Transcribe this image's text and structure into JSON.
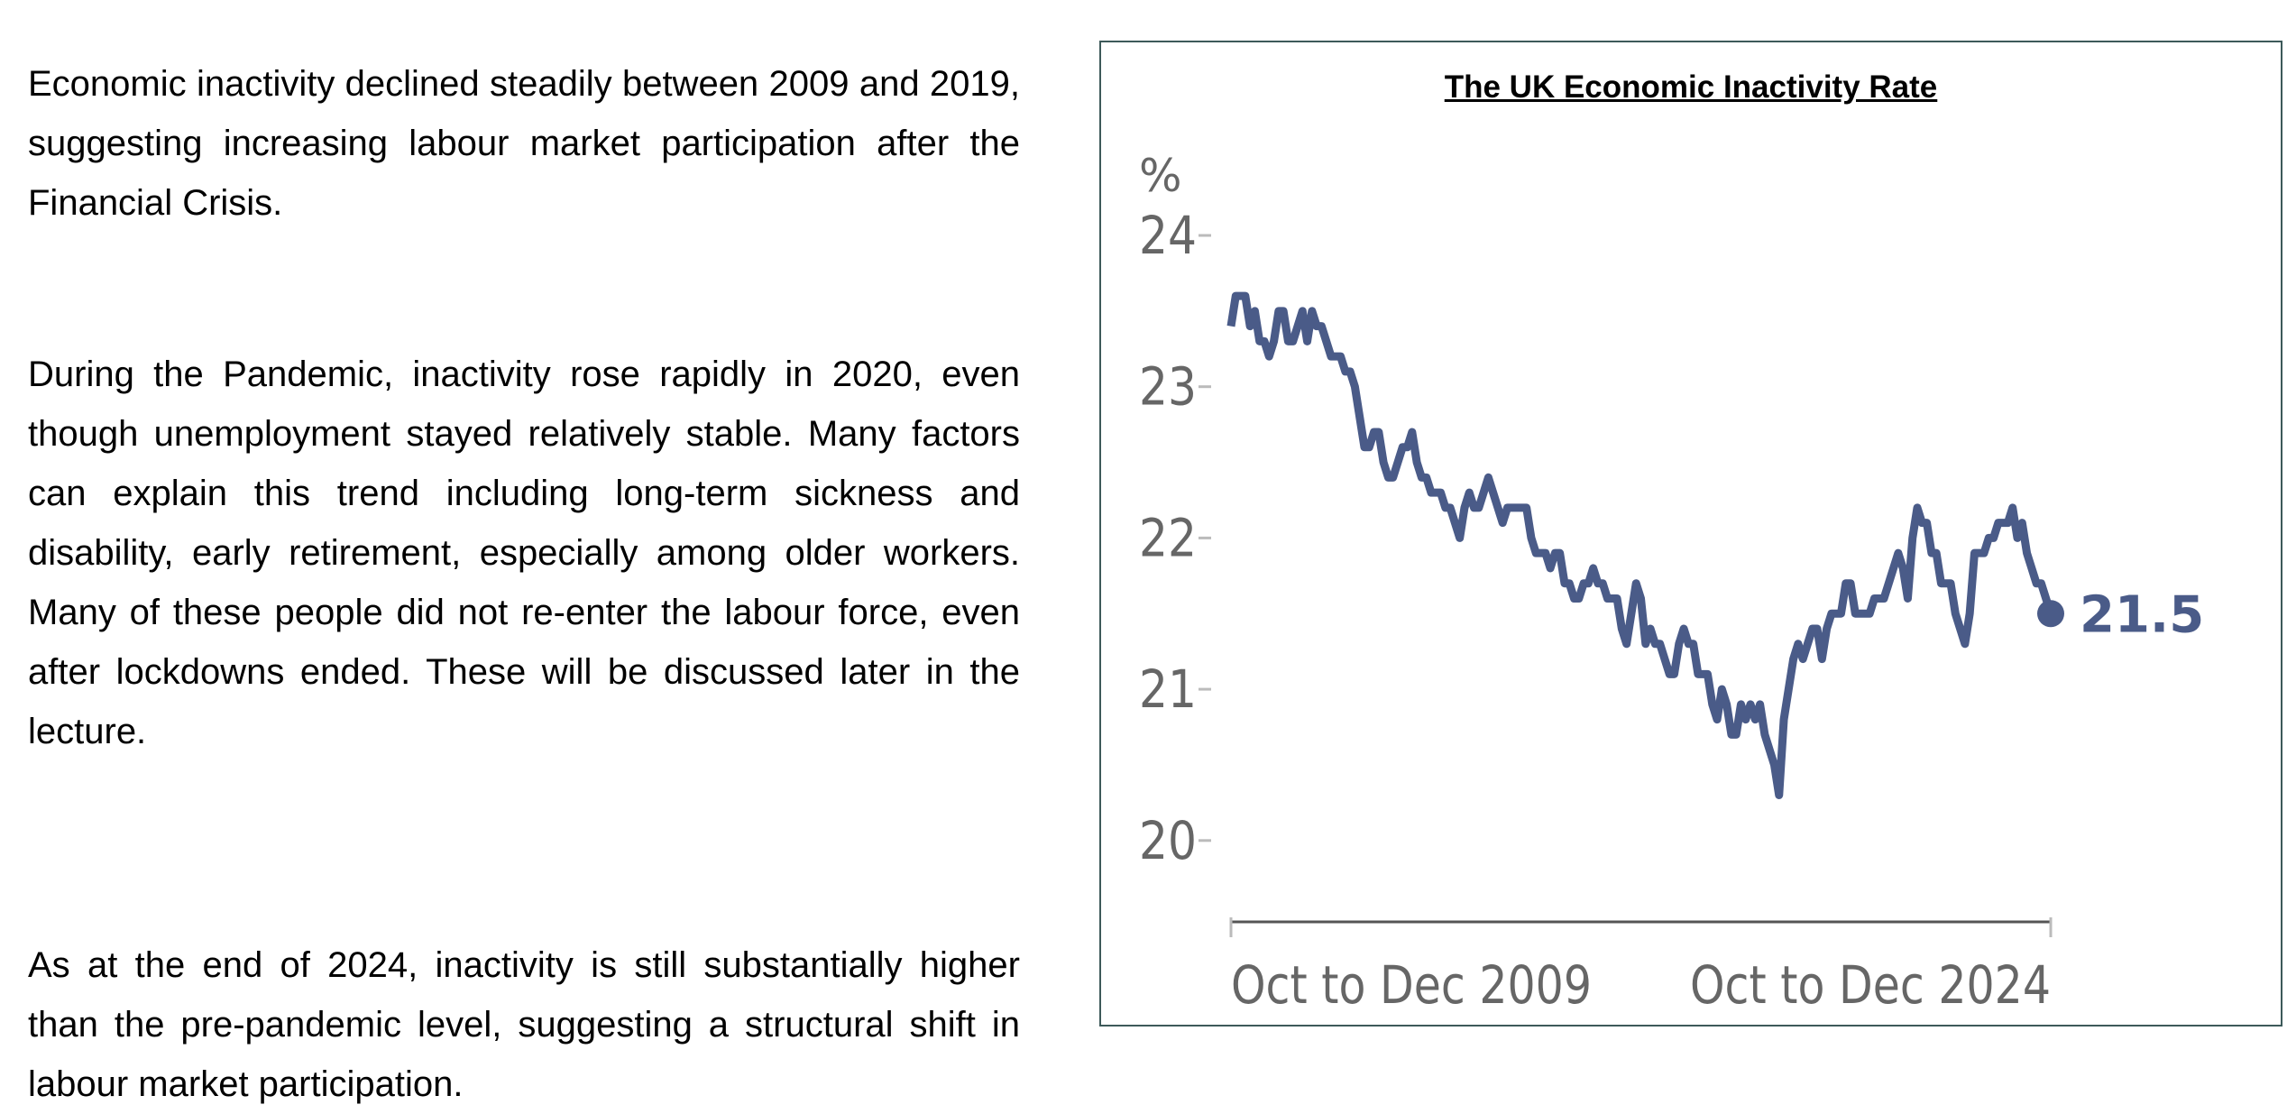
{
  "text": {
    "paragraph_1": "Economic inactivity declined steadily between 2009 and 2019, suggesting increasing labour market participation after the Financial Crisis.",
    "paragraph_2": "During the Pandemic, inactivity rose rapidly in 2020, even though unemployment stayed relatively stable. Many factors can explain this trend including long-term sickness and disability, early retirement, especially among older workers. Many of these people did not re-enter the labour force, even after lockdowns ended. These will be discussed later in the lecture.",
    "paragraph_3": "As at the end of 2024, inactivity is still substantially higher than the pre-pandemic level, suggesting a structural shift in labour market participation."
  },
  "chart_data": {
    "type": "line",
    "title": "The UK Economic Inactivity Rate",
    "ylabel": "%",
    "xlabel": "",
    "ylim": [
      19.5,
      24.2
    ],
    "yticks": [
      "20",
      "21",
      "22",
      "23",
      "24"
    ],
    "xtick_labels": [
      "Oct to Dec 2009",
      "Oct to Dec 2024"
    ],
    "grid": false,
    "end_label": "21.5",
    "line_color": "#4a5b88",
    "series": [
      {
        "name": "Economic inactivity rate",
        "values": [
          23.4,
          23.6,
          23.6,
          23.6,
          23.4,
          23.5,
          23.3,
          23.3,
          23.2,
          23.3,
          23.5,
          23.5,
          23.3,
          23.3,
          23.4,
          23.5,
          23.3,
          23.5,
          23.4,
          23.4,
          23.3,
          23.2,
          23.2,
          23.2,
          23.1,
          23.1,
          23.0,
          22.8,
          22.6,
          22.6,
          22.7,
          22.7,
          22.5,
          22.4,
          22.4,
          22.5,
          22.6,
          22.6,
          22.7,
          22.5,
          22.4,
          22.4,
          22.3,
          22.3,
          22.3,
          22.2,
          22.2,
          22.1,
          22.0,
          22.2,
          22.3,
          22.2,
          22.2,
          22.3,
          22.4,
          22.3,
          22.2,
          22.1,
          22.2,
          22.2,
          22.2,
          22.2,
          22.2,
          22.0,
          21.9,
          21.9,
          21.9,
          21.8,
          21.9,
          21.9,
          21.7,
          21.7,
          21.6,
          21.6,
          21.7,
          21.7,
          21.8,
          21.7,
          21.7,
          21.6,
          21.6,
          21.6,
          21.4,
          21.3,
          21.5,
          21.7,
          21.6,
          21.3,
          21.4,
          21.3,
          21.3,
          21.2,
          21.1,
          21.1,
          21.3,
          21.4,
          21.3,
          21.3,
          21.1,
          21.1,
          21.1,
          20.9,
          20.8,
          21.0,
          20.9,
          20.7,
          20.7,
          20.9,
          20.8,
          20.9,
          20.8,
          20.9,
          20.7,
          20.6,
          20.5,
          20.3,
          20.8,
          21.0,
          21.2,
          21.3,
          21.2,
          21.3,
          21.4,
          21.4,
          21.2,
          21.4,
          21.5,
          21.5,
          21.5,
          21.7,
          21.7,
          21.5,
          21.5,
          21.5,
          21.5,
          21.6,
          21.6,
          21.6,
          21.7,
          21.8,
          21.9,
          21.8,
          21.6,
          22.0,
          22.2,
          22.1,
          22.1,
          21.9,
          21.9,
          21.7,
          21.7,
          21.7,
          21.5,
          21.4,
          21.3,
          21.5,
          21.9,
          21.9,
          21.9,
          22.0,
          22.0,
          22.1,
          22.1,
          22.1,
          22.2,
          22.0,
          22.1,
          21.9,
          21.8,
          21.7,
          21.7,
          21.6,
          21.5
        ]
      }
    ]
  }
}
